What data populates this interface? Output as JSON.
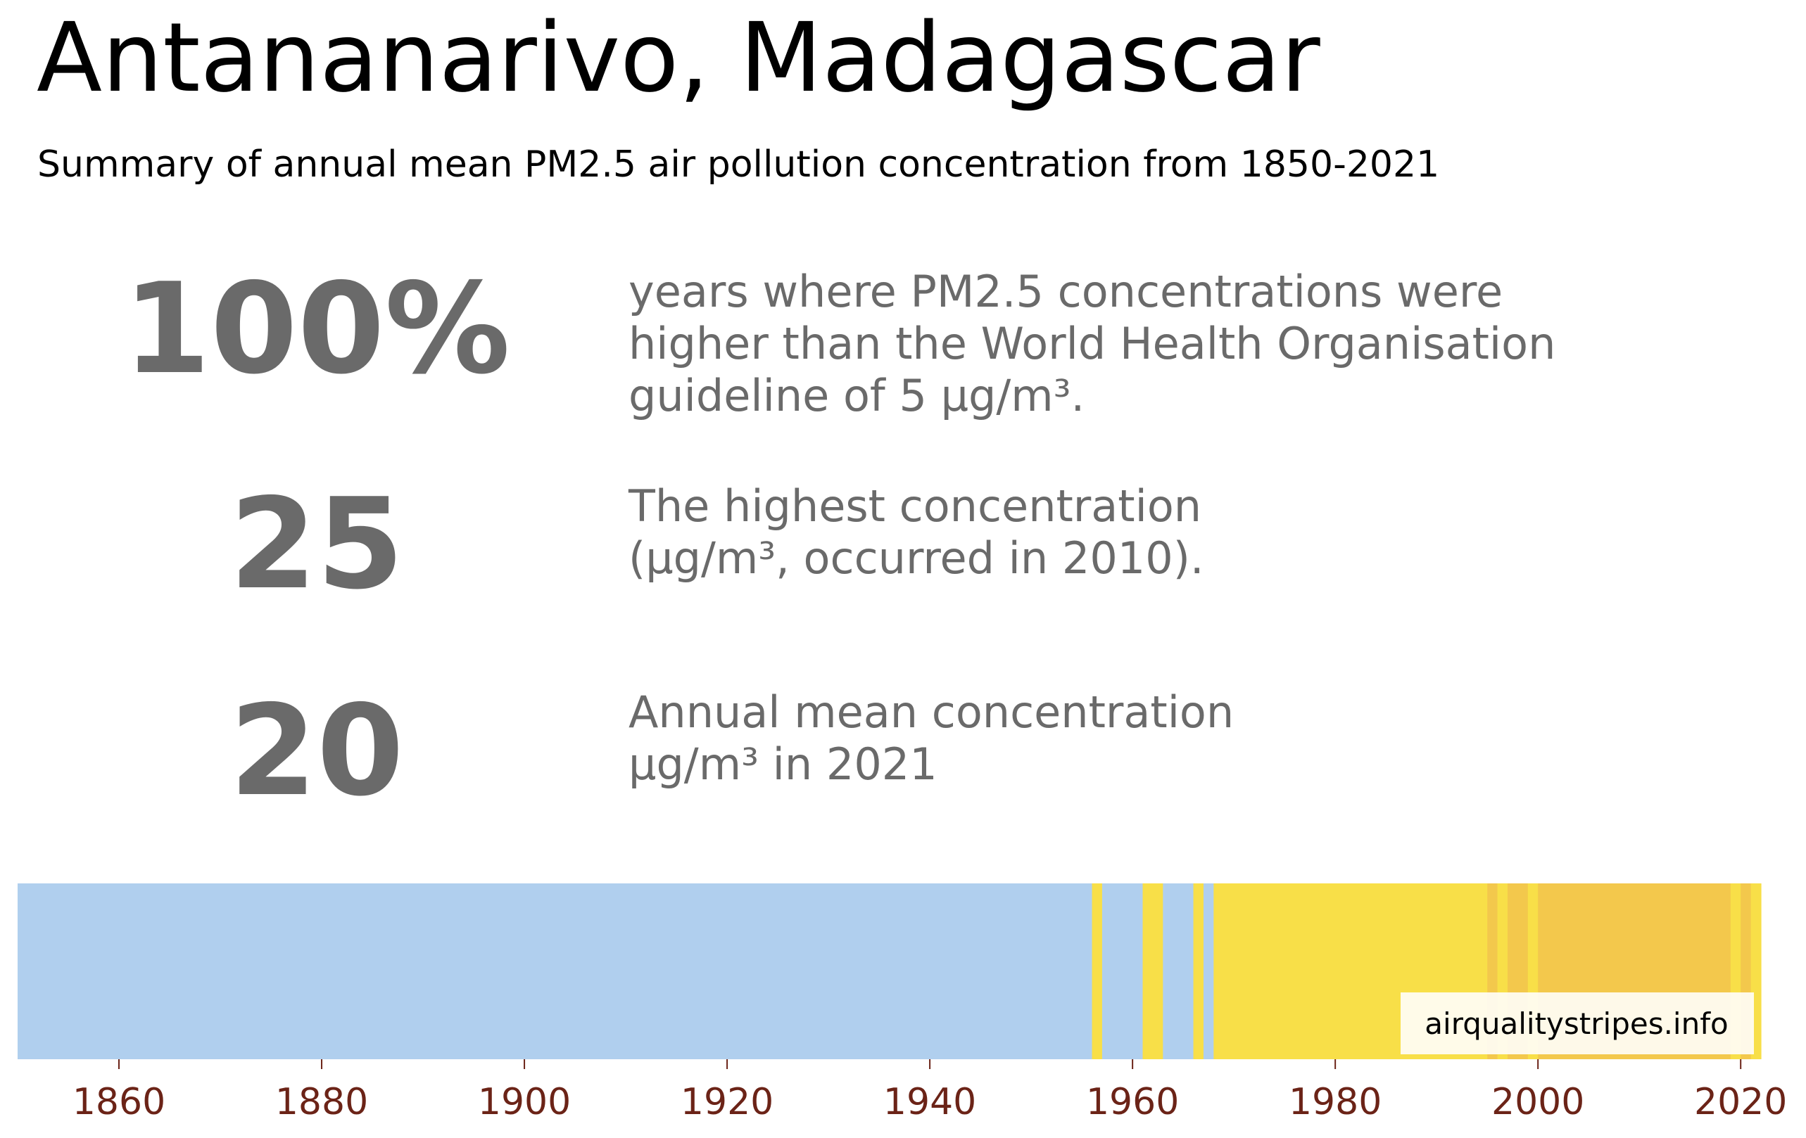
{
  "title": "Antananarivo, Madagascar",
  "subtitle": "Summary of annual mean PM2.5 air pollution concentration from 1850-2021",
  "stats": [
    {
      "value": "100%",
      "description": "years where PM2.5 concentrations were\nhigher than the World Health Organisation\nguideline of 5 µg/m³."
    },
    {
      "value": "25",
      "description": "The highest concentration\n(µg/m³, occurred in 2010)."
    },
    {
      "value": "20",
      "description": "Annual mean concentration\nµg/m³ in 2021"
    }
  ],
  "source": "airqualitystripes.info",
  "colors": {
    "stat_text": "#6a6a6a",
    "tick_label": "#6b2317",
    "low": "#b0cfee",
    "mid": "#f8df48",
    "high": "#f3c84c"
  },
  "chart_data": {
    "type": "heatmap",
    "title": "",
    "xlabel": "",
    "ylabel": "",
    "xlim": [
      1850,
      2022
    ],
    "ticks": [
      1860,
      1880,
      1900,
      1920,
      1940,
      1960,
      1980,
      2000,
      2020
    ],
    "legend": "none",
    "grid": false,
    "bands": [
      {
        "start": 1850,
        "end": 1956,
        "color": "#b0cfee"
      },
      {
        "start": 1956,
        "end": 1957,
        "color": "#f8df48"
      },
      {
        "start": 1957,
        "end": 1961,
        "color": "#b0cfee"
      },
      {
        "start": 1961,
        "end": 1963,
        "color": "#f8df48"
      },
      {
        "start": 1963,
        "end": 1966,
        "color": "#b0cfee"
      },
      {
        "start": 1966,
        "end": 1967,
        "color": "#f8df48"
      },
      {
        "start": 1967,
        "end": 1968,
        "color": "#b0cfee"
      },
      {
        "start": 1968,
        "end": 1995,
        "color": "#f8df48"
      },
      {
        "start": 1995,
        "end": 1996,
        "color": "#f3c84c"
      },
      {
        "start": 1996,
        "end": 1997,
        "color": "#f8df48"
      },
      {
        "start": 1997,
        "end": 1999,
        "color": "#f3c84c"
      },
      {
        "start": 1999,
        "end": 2000,
        "color": "#f8df48"
      },
      {
        "start": 2000,
        "end": 2019,
        "color": "#f3c84c"
      },
      {
        "start": 2019,
        "end": 2020,
        "color": "#f8df48"
      },
      {
        "start": 2020,
        "end": 2021,
        "color": "#f3c84c"
      },
      {
        "start": 2021,
        "end": 2022,
        "color": "#f8df48"
      }
    ]
  }
}
